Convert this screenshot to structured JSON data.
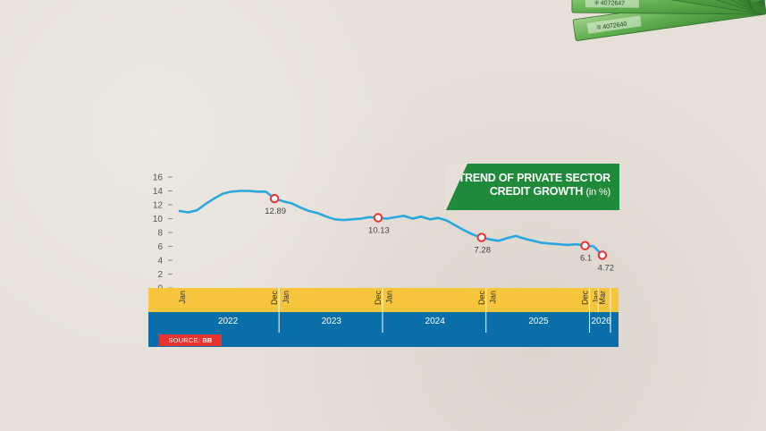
{
  "header": {
    "title_line1": "TREND OF PRIVATE SECTOR",
    "title_line2": "CREDIT GROWTH",
    "title_unit": "(in %)"
  },
  "source": {
    "label": "SOURCE:",
    "value": "BB"
  },
  "colors": {
    "line": "#29a8e0",
    "marker": "#e8322d",
    "month_band": "#f7c53c",
    "year_band": "#0a6ea8",
    "title_bg": "#1f8a3a"
  },
  "chart_data": {
    "type": "line",
    "title": "TREND OF PRIVATE SECTOR CREDIT GROWTH (in %)",
    "ylim": [
      0,
      16
    ],
    "y_ticks": [
      "16",
      "14",
      "12",
      "10",
      "8",
      "6",
      "4",
      "2",
      "0"
    ],
    "grid": false,
    "series": [
      {
        "values": [
          11.1,
          10.9,
          11.2,
          12.1,
          12.9,
          13.6,
          13.9,
          14.0,
          14.0,
          13.9,
          13.9,
          12.89,
          12.5,
          12.2,
          11.6,
          11.1,
          10.8,
          10.3,
          9.9,
          9.8,
          9.9,
          10.0,
          10.2,
          10.13,
          10.0,
          10.2,
          10.4,
          10.0,
          10.3,
          9.9,
          10.1,
          9.7,
          9.0,
          8.3,
          7.7,
          7.28,
          7.0,
          6.8,
          7.2,
          7.5,
          7.1,
          6.8,
          6.5,
          6.4,
          6.3,
          6.2,
          6.3,
          6.1,
          6.0,
          4.72
        ]
      }
    ],
    "annotations": [
      {
        "index": 11,
        "label": "12.89"
      },
      {
        "index": 23,
        "label": "10.13"
      },
      {
        "index": 35,
        "label": "7.28"
      },
      {
        "index": 47,
        "label": "6.1"
      },
      {
        "index": 49,
        "label": "4.72"
      }
    ],
    "month_labels": [
      {
        "index": 0,
        "label": "Jan"
      },
      {
        "index": 11,
        "label": "Dec"
      },
      {
        "index": 12,
        "label": "Jan"
      },
      {
        "index": 23,
        "label": "Dec"
      },
      {
        "index": 24,
        "label": "Jan"
      },
      {
        "index": 35,
        "label": "Dec"
      },
      {
        "index": 36,
        "label": "Jan"
      },
      {
        "index": 47,
        "label": "Dec"
      },
      {
        "index": 48,
        "label": "Jan"
      },
      {
        "index": 49,
        "label": "Mar"
      }
    ],
    "years": [
      {
        "label": "2022",
        "start": 0,
        "end": 11
      },
      {
        "label": "2023",
        "start": 12,
        "end": 23
      },
      {
        "label": "2024",
        "start": 24,
        "end": 35
      },
      {
        "label": "2025",
        "start": 36,
        "end": 47
      },
      {
        "label": "2026",
        "start": 48,
        "end": 50
      }
    ]
  }
}
